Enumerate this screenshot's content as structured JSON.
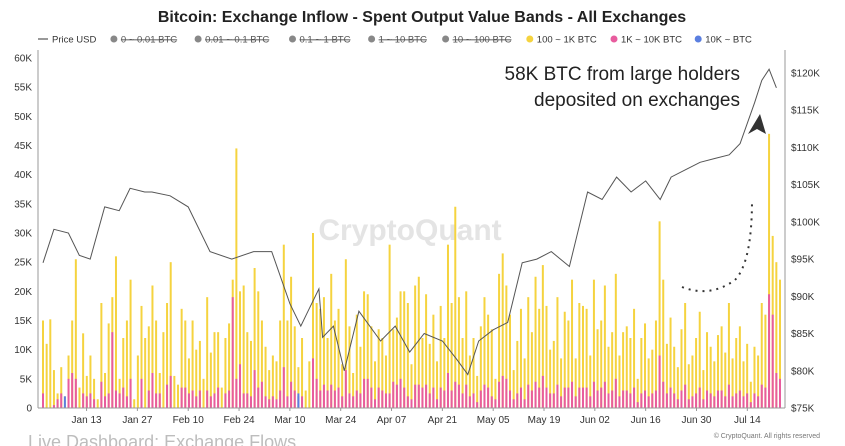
{
  "chart_data": {
    "type": "bar",
    "title": "Bitcoin: Exchange Inflow - Spent Output Value Bands - All Exchanges",
    "legend": {
      "placement": "top",
      "items": [
        {
          "label": "Price USD",
          "kind": "line",
          "color": "#555555",
          "disabled": false
        },
        {
          "label": "0 ~ 0.01 BTC",
          "kind": "dot",
          "color": "#888888",
          "disabled": true
        },
        {
          "label": "0.01 ~ 0.1 BTC",
          "kind": "dot",
          "color": "#888888",
          "disabled": true
        },
        {
          "label": "0.1 ~ 1 BTC",
          "kind": "dot",
          "color": "#888888",
          "disabled": true
        },
        {
          "label": "1 ~ 10 BTC",
          "kind": "dot",
          "color": "#888888",
          "disabled": true
        },
        {
          "label": "10 ~ 100 BTC",
          "kind": "dot",
          "color": "#888888",
          "disabled": true
        },
        {
          "label": "100 ~ 1K BTC",
          "kind": "dot",
          "color": "#f5d33f",
          "disabled": false
        },
        {
          "label": "1K ~ 10K BTC",
          "kind": "dot",
          "color": "#e85c9e",
          "disabled": false
        },
        {
          "label": "10K ~ BTC",
          "kind": "dot",
          "color": "#5b7fe0",
          "disabled": false
        }
      ]
    },
    "x_ticks": [
      "Jan 13",
      "Jan 27",
      "Feb 10",
      "Feb 24",
      "Mar 10",
      "Mar 24",
      "Apr 07",
      "Apr 21",
      "May 05",
      "May 19",
      "Jun 02",
      "Jun 16",
      "Jun 30",
      "Jul 14"
    ],
    "y_left": {
      "ticks": [
        "0",
        "5K",
        "10K",
        "15K",
        "20K",
        "25K",
        "30K",
        "35K",
        "40K",
        "45K",
        "50K",
        "55K",
        "60K"
      ],
      "range": [
        0,
        60000
      ]
    },
    "y_right": {
      "ticks": [
        "$75K",
        "$80K",
        "$85K",
        "$90K",
        "$95K",
        "$100K",
        "$105K",
        "$110K",
        "$115K",
        "$120K"
      ],
      "range": [
        75000,
        122000
      ]
    },
    "grid": false,
    "x_range_days": [
      0,
      203
    ],
    "series_colors": {
      "band_100_1k": "#f5d33f",
      "band_1k_10k": "#e85c9e",
      "band_10k_plus": "#5b7fe0",
      "price": "#555555"
    },
    "series": [
      {
        "name": "100 ~ 1K BTC",
        "values": [
          15000,
          11000,
          15200,
          6500,
          2500,
          7000,
          2000,
          9000,
          15000,
          25500,
          3500,
          12800,
          5500,
          9000,
          5000,
          1500,
          18000,
          6000,
          14500,
          19000,
          26000,
          5000,
          12000,
          15000,
          22000,
          1500,
          9000,
          17500,
          12000,
          14000,
          21000,
          15000,
          6000,
          13000,
          18000,
          25000,
          5500,
          4000,
          17000,
          15000,
          8500,
          15000,
          10000,
          11500,
          5000,
          19000,
          9500,
          13000,
          13000,
          3500,
          12000,
          14500,
          22000,
          44500,
          20000,
          21000,
          13000,
          11500,
          24000,
          20000,
          15000,
          10500,
          6500,
          9000,
          8000,
          15000,
          28000,
          15000,
          22500,
          14000,
          7000,
          12000,
          3000,
          8000,
          30000,
          18000,
          17000,
          19000,
          12000,
          23000,
          15000,
          17000,
          7500,
          25500,
          14000,
          6000,
          16000,
          10500,
          20000,
          19500,
          14000,
          8000,
          13500,
          12000,
          9000,
          28000,
          13500,
          15500,
          20000,
          20000,
          18000,
          7500,
          21000,
          22500,
          12000,
          19500,
          11000,
          16000,
          8000,
          17500,
          12000,
          28000,
          18000,
          34500,
          19000,
          12000,
          20000,
          9000,
          12000,
          5500,
          14000,
          19000,
          16000,
          13500,
          5000,
          23000,
          26500,
          21000,
          16000,
          6500,
          11500,
          17000,
          8500,
          19000,
          13000,
          22500,
          17000,
          24500,
          17500,
          10000,
          11500,
          19000,
          8500,
          16500,
          15000,
          22000,
          8500,
          18000,
          17500,
          17000,
          9000,
          22000,
          13500,
          15000,
          21000,
          10500,
          13000,
          23000,
          9000,
          13000,
          14000,
          12000,
          17000,
          5000,
          12000,
          14500,
          8500,
          10000,
          15000,
          32000,
          22000,
          11000,
          15500,
          10500,
          7000,
          13500,
          18000,
          7500,
          9000,
          12000,
          16500,
          6500,
          13000,
          10500,
          8000,
          12500,
          14000,
          9500,
          18000,
          8500,
          12000,
          14000,
          8000,
          11000,
          4500,
          10500,
          9000,
          18000,
          16000,
          47000,
          29500,
          25000,
          22000
        ]
      },
      {
        "name": "1K ~ 10K BTC",
        "values": [
          2500,
          0,
          0,
          500,
          1500,
          2500,
          0,
          5000,
          6000,
          5000,
          0,
          2500,
          2000,
          2500,
          1500,
          0,
          4500,
          2000,
          2500,
          13000,
          3000,
          2500,
          3500,
          2000,
          5000,
          0,
          0,
          5000,
          0,
          3000,
          6000,
          2500,
          2500,
          0,
          4000,
          5500,
          0,
          0,
          3500,
          3500,
          2500,
          3000,
          2000,
          3000,
          0,
          3000,
          2000,
          2500,
          3500,
          0,
          2500,
          3000,
          19000,
          5000,
          7500,
          2500,
          2500,
          2000,
          6500,
          3500,
          4500,
          2000,
          1500,
          2000,
          1500,
          3000,
          7000,
          2000,
          4500,
          3000,
          2000,
          2000,
          0,
          0,
          8500,
          5000,
          3000,
          4000,
          3000,
          4000,
          3000,
          3500,
          2000,
          6500,
          2500,
          2000,
          3000,
          2500,
          5000,
          5000,
          3500,
          1500,
          3500,
          3000,
          2500,
          2500,
          4500,
          4000,
          5000,
          3500,
          2000,
          1500,
          4000,
          4000,
          3500,
          4000,
          2500,
          3500,
          1500,
          3500,
          3000,
          6000,
          3000,
          4500,
          4000,
          2500,
          4000,
          2000,
          2500,
          1000,
          3000,
          4000,
          3500,
          2000,
          1500,
          4500,
          5500,
          5000,
          3000,
          1500,
          2500,
          3500,
          1500,
          4000,
          3000,
          4500,
          3500,
          5500,
          3500,
          2500,
          2500,
          4000,
          2000,
          3500,
          3500,
          4500,
          2000,
          3500,
          3500,
          3500,
          2000,
          4500,
          3000,
          3500,
          4500,
          2500,
          3000,
          5000,
          2000,
          3000,
          3000,
          2500,
          3500,
          1000,
          2500,
          3000,
          2000,
          2500,
          3000,
          9000,
          4500,
          2500,
          3500,
          2500,
          1500,
          3000,
          4000,
          1500,
          2000,
          2500,
          3500,
          1500,
          3000,
          2500,
          2000,
          3000,
          3000,
          2000,
          4000,
          2000,
          2500,
          3000,
          2000,
          2500,
          1000,
          2500,
          2000,
          4000,
          3500,
          19500,
          16000,
          6000,
          5000
        ]
      },
      {
        "name": "10K ~ BTC",
        "values": [
          0,
          0,
          0,
          0,
          0,
          0,
          2000,
          0,
          0,
          0,
          0,
          0,
          0,
          0,
          0,
          0,
          0,
          0,
          0,
          0,
          0,
          0,
          0,
          0,
          0,
          0,
          0,
          0,
          0,
          0,
          0,
          0,
          0,
          0,
          0,
          0,
          0,
          0,
          0,
          0,
          0,
          0,
          0,
          0,
          0,
          0,
          0,
          0,
          0,
          0,
          0,
          0,
          0,
          0,
          0,
          0,
          0,
          0,
          0,
          0,
          0,
          0,
          0,
          0,
          0,
          0,
          0,
          0,
          0,
          0,
          2500,
          0,
          0,
          0,
          0,
          0,
          0,
          0,
          0,
          0,
          0,
          0,
          0,
          0,
          0,
          0,
          0,
          0,
          0,
          0,
          0,
          0,
          0,
          0,
          0,
          0,
          0,
          0,
          0,
          0,
          0,
          0,
          0,
          0,
          0,
          0,
          0,
          0,
          0,
          0,
          0,
          0,
          0,
          0,
          0,
          0,
          0,
          0,
          0,
          0,
          0,
          0,
          0,
          0,
          0,
          0,
          0,
          0,
          0,
          0,
          0,
          0,
          0,
          0,
          0,
          0,
          0,
          0,
          0,
          0,
          0,
          0,
          0,
          0,
          0,
          0,
          0,
          0,
          0,
          0,
          0,
          0,
          0,
          0,
          0,
          0,
          0,
          0,
          0,
          0,
          0,
          0,
          0,
          0,
          0,
          0,
          0,
          0,
          0,
          0,
          0,
          0,
          0,
          0,
          0,
          0,
          0,
          0,
          0,
          0,
          0,
          0,
          0,
          0,
          0,
          0,
          0,
          0,
          0,
          0,
          0,
          0,
          0,
          0,
          0,
          0,
          0,
          0,
          0,
          0,
          0,
          0,
          0,
          0,
          0,
          0,
          0,
          0,
          0,
          0,
          0,
          0,
          0,
          0,
          0,
          0,
          0,
          0,
          0,
          0,
          0,
          0,
          0,
          0,
          0,
          0,
          0,
          0,
          0,
          0
        ]
      },
      {
        "name": "Price USD",
        "kind": "line",
        "axis": "right",
        "points": [
          [
            0,
            94500
          ],
          [
            3,
            99000
          ],
          [
            7,
            98500
          ],
          [
            10,
            95500
          ],
          [
            13,
            95000
          ],
          [
            17,
            102000
          ],
          [
            21,
            101500
          ],
          [
            24,
            104500
          ],
          [
            28,
            104000
          ],
          [
            30,
            104000
          ],
          [
            35,
            103500
          ],
          [
            40,
            102000
          ],
          [
            46,
            96000
          ],
          [
            52,
            95000
          ],
          [
            58,
            96000
          ],
          [
            63,
            96000
          ],
          [
            68,
            89000
          ],
          [
            71,
            86000
          ],
          [
            73,
            88000
          ],
          [
            76,
            91000
          ],
          [
            77,
            84500
          ],
          [
            80,
            86000
          ],
          [
            83,
            80000
          ],
          [
            87,
            88000
          ],
          [
            93,
            84000
          ],
          [
            97,
            86000
          ],
          [
            101,
            82500
          ],
          [
            105,
            85000
          ],
          [
            110,
            84000
          ],
          [
            114,
            81500
          ],
          [
            117,
            79500
          ],
          [
            120,
            84000
          ],
          [
            124,
            85500
          ],
          [
            128,
            86500
          ],
          [
            132,
            94500
          ],
          [
            136,
            95000
          ],
          [
            140,
            96000
          ],
          [
            145,
            94000
          ],
          [
            150,
            104000
          ],
          [
            154,
            103000
          ],
          [
            158,
            106000
          ],
          [
            162,
            104000
          ],
          [
            166,
            105500
          ],
          [
            170,
            103000
          ],
          [
            173,
            106000
          ],
          [
            177,
            107000
          ],
          [
            181,
            108000
          ],
          [
            185,
            108500
          ],
          [
            189,
            109000
          ],
          [
            192,
            110500
          ],
          [
            196,
            116000
          ],
          [
            198,
            119000
          ],
          [
            200,
            120500
          ],
          [
            202,
            118000
          ]
        ]
      }
    ],
    "annotation": "58K BTC from large holders deposited on exchanges",
    "watermark": "CryptoQuant",
    "copyright": "© CryptoQuant. All rights reserved",
    "caption": "Live Dashboard: Exchange Flows"
  }
}
